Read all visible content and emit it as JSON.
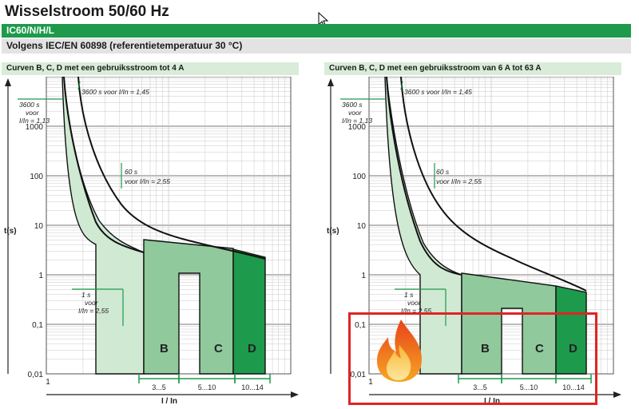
{
  "header": {
    "title": "Wisselstroom 50/60 Hz",
    "product": "IC60/N/H/L",
    "standard": "Volgens IEC/EN 60898 (referentietemperatuur 30 °C)"
  },
  "colors": {
    "brand_green": "#1d9a4b",
    "curve_b": "#cfe9d3",
    "curve_c": "#8fc99c",
    "curve_d": "#1d9a4b",
    "highlight_red": "#e02424"
  },
  "icons": {
    "cursor": "mouse-pointer-icon",
    "flame": "flame-icon"
  },
  "chart_data": [
    {
      "type": "area",
      "title": "Curven B, C, D met een gebruiksstroom tot 4 A",
      "xlabel": "I / In",
      "ylabel": "t(s)",
      "xscale": "log",
      "yscale": "log",
      "ylim": [
        0.01,
        10000
      ],
      "y_ticks": [
        "1000",
        "100",
        "10",
        "1",
        "0,1",
        "0,01"
      ],
      "x_ticks": [
        "1"
      ],
      "grid": true,
      "annotations": [
        "3600 s voor I/In = 1,45",
        "3600 s voor I/In = 1,13",
        "60 s voor I/In = 2,55",
        "1 s voor I/In = 2,55"
      ],
      "bands": [
        {
          "name": "B",
          "range_label": "3...5"
        },
        {
          "name": "C",
          "range_label": "5...10"
        },
        {
          "name": "D",
          "range_label": "10...14"
        }
      ]
    },
    {
      "type": "area",
      "title": "Curven B, C, D met een gebruiksstroom van 6 A tot 63 A",
      "xlabel": "I / In",
      "ylabel": "t(s)",
      "xscale": "log",
      "yscale": "log",
      "ylim": [
        0.01,
        10000
      ],
      "y_ticks": [
        "1000",
        "100",
        "10",
        "1",
        "0,1",
        "0,01"
      ],
      "x_ticks": [
        "1"
      ],
      "grid": true,
      "annotations": [
        "3600 s voor I/In = 1,45",
        "3600 s voor I/In = 1,13",
        "60 s voor I/In = 2,55",
        "1 s voor I/In = 2,55"
      ],
      "bands": [
        {
          "name": "B",
          "range_label": "3...5"
        },
        {
          "name": "C",
          "range_label": "5...10"
        },
        {
          "name": "D",
          "range_label": "10...14"
        }
      ]
    }
  ]
}
